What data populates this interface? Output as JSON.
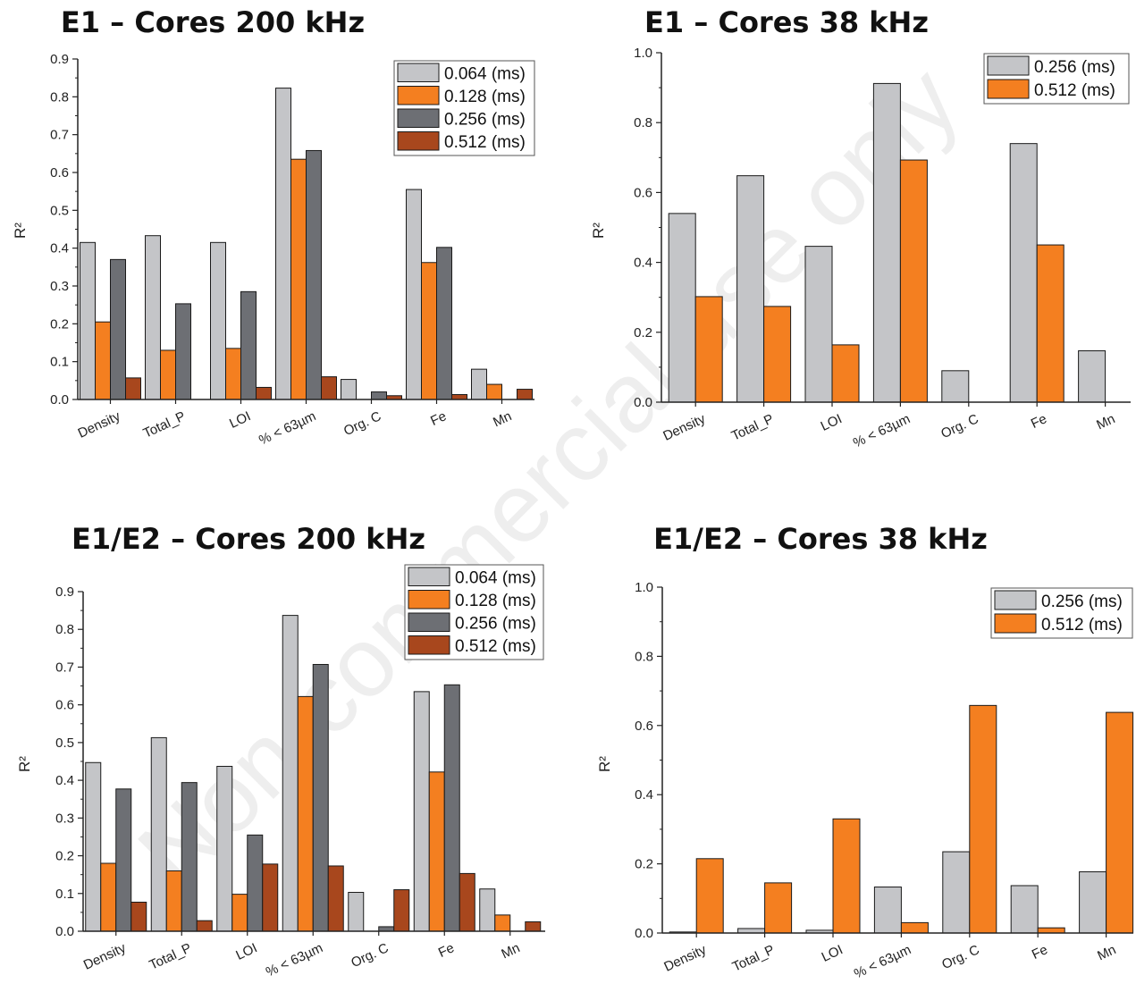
{
  "watermark": "Non-commercial use only",
  "colors": {
    "0.064 (ms)": "#c4c5c8",
    "0.128 (ms)": "#f47f20",
    "0.256 (ms)": "#6d6f74",
    "0.512 (ms)": "#a8471d",
    "0.256 (ms) 38kHz": "#c4c5c8",
    "0.512 (ms) 38kHz": "#f47f20"
  },
  "chart_data": [
    {
      "type": "bar",
      "title": "E1 – Cores 200 kHz",
      "ylabel": "R²",
      "ylim": [
        0,
        0.9
      ],
      "yticks": [
        "0.0",
        "0.1",
        "0.2",
        "0.3",
        "0.4",
        "0.5",
        "0.6",
        "0.7",
        "0.8",
        "0.9"
      ],
      "legend_position": "top-right",
      "categories": [
        "Density",
        "Total_P",
        "LOI",
        "% < 63µm",
        "Org. C",
        "Fe",
        "Mn"
      ],
      "series": [
        {
          "name": "0.064 (ms)",
          "values": [
            0.415,
            0.433,
            0.415,
            0.823,
            0.053,
            0.555,
            0.08
          ]
        },
        {
          "name": "0.128 (ms)",
          "values": [
            0.205,
            0.13,
            0.135,
            0.635,
            0.0,
            0.362,
            0.04
          ]
        },
        {
          "name": "0.256 (ms)",
          "values": [
            0.37,
            0.253,
            0.285,
            0.658,
            0.02,
            0.402,
            0.0
          ]
        },
        {
          "name": "0.512 (ms)",
          "values": [
            0.057,
            0.0,
            0.032,
            0.06,
            0.01,
            0.013,
            0.027
          ]
        }
      ]
    },
    {
      "type": "bar",
      "title": "E1 – Cores 38 kHz",
      "ylabel": "R²",
      "ylim": [
        0,
        1.0
      ],
      "yticks": [
        "0.0",
        "0.2",
        "0.4",
        "0.6",
        "0.8",
        "1.0"
      ],
      "legend_position": "top-right",
      "categories": [
        "Density",
        "Total_P",
        "LOI",
        "% < 63µm",
        "Org. C",
        "Fe",
        "Mn"
      ],
      "series": [
        {
          "name": "0.256 (ms)",
          "values": [
            0.54,
            0.648,
            0.446,
            0.912,
            0.09,
            0.74,
            0.147
          ]
        },
        {
          "name": "0.512 (ms)",
          "values": [
            0.302,
            0.274,
            0.164,
            0.693,
            0.0,
            0.45,
            0.0
          ]
        }
      ]
    },
    {
      "type": "bar",
      "title": "E1/E2 – Cores 200 kHz",
      "ylabel": "R²",
      "ylim": [
        0,
        0.9
      ],
      "yticks": [
        "0.0",
        "0.1",
        "0.2",
        "0.3",
        "0.4",
        "0.5",
        "0.6",
        "0.7",
        "0.8",
        "0.9"
      ],
      "legend_position": "top-right",
      "categories": [
        "Density",
        "Total_P",
        "LOI",
        "% < 63µm",
        "Org. C",
        "Fe",
        "Mn"
      ],
      "series": [
        {
          "name": "0.064 (ms)",
          "values": [
            0.447,
            0.513,
            0.437,
            0.837,
            0.103,
            0.635,
            0.112
          ]
        },
        {
          "name": "0.128 (ms)",
          "values": [
            0.18,
            0.16,
            0.098,
            0.622,
            0.0,
            0.422,
            0.043
          ]
        },
        {
          "name": "0.256 (ms)",
          "values": [
            0.377,
            0.394,
            0.255,
            0.707,
            0.012,
            0.653,
            0.0
          ]
        },
        {
          "name": "0.512 (ms)",
          "values": [
            0.077,
            0.028,
            0.178,
            0.173,
            0.11,
            0.153,
            0.025
          ]
        }
      ]
    },
    {
      "type": "bar",
      "title": "E1/E2 – Cores 38 kHz",
      "ylabel": "R²",
      "ylim": [
        0,
        1.0
      ],
      "yticks": [
        "0.0",
        "0.2",
        "0.4",
        "0.6",
        "0.8",
        "1.0"
      ],
      "legend_position": "top-right",
      "categories": [
        "Density",
        "Total_P",
        "LOI",
        "% < 63µm",
        "Org. C",
        "Fe",
        "Mn"
      ],
      "series": [
        {
          "name": "0.256 (ms)",
          "values": [
            0.003,
            0.013,
            0.008,
            0.133,
            0.235,
            0.137,
            0.177
          ]
        },
        {
          "name": "0.512 (ms)",
          "values": [
            0.215,
            0.145,
            0.33,
            0.03,
            0.658,
            0.015,
            0.638
          ]
        }
      ]
    }
  ]
}
